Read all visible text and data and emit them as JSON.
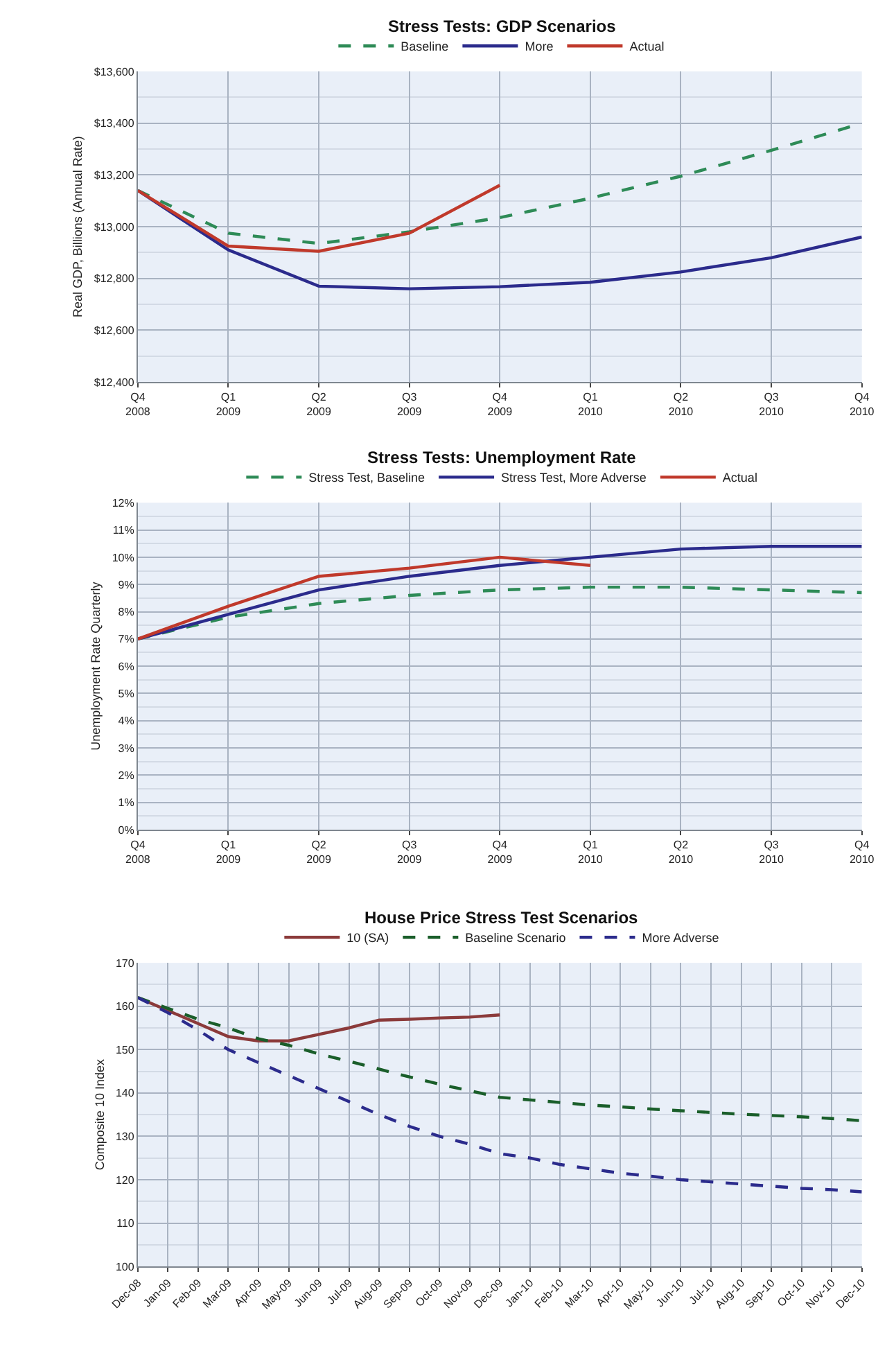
{
  "chart_data": [
    {
      "type": "line",
      "title": "Stress Tests: GDP Scenarios",
      "ylabel": "Real GDP, Billions (Annual Rate)",
      "categories": [
        "Q4\n2008",
        "Q1\n2009",
        "Q2\n2009",
        "Q3\n2009",
        "Q4\n2009",
        "Q1\n2010",
        "Q2\n2010",
        "Q3\n2010",
        "Q4\n2010"
      ],
      "series": [
        {
          "name": "Baseline",
          "color": "#2e8b57",
          "line_style": "dashed",
          "values": [
            13140,
            12975,
            12935,
            12980,
            13035,
            13110,
            13195,
            13295,
            13400
          ]
        },
        {
          "name": "More",
          "color": "#2b2b8c",
          "line_style": "solid",
          "values": [
            13140,
            12910,
            12770,
            12760,
            12768,
            12785,
            12825,
            12880,
            12960
          ]
        },
        {
          "name": "Actual",
          "color": "#c0392b",
          "line_style": "solid",
          "values": [
            13140,
            12925,
            12905,
            12975,
            13160,
            null,
            null,
            null,
            null
          ]
        }
      ],
      "ylim": [
        12400,
        13600
      ],
      "yticks": [
        {
          "value": 12400,
          "label": "$12,400"
        },
        {
          "value": 12600,
          "label": "$12,600"
        },
        {
          "value": 12800,
          "label": "$12,800"
        },
        {
          "value": 13000,
          "label": "$13,000"
        },
        {
          "value": 13200,
          "label": "$13,200"
        },
        {
          "value": 13400,
          "label": "$13,400"
        },
        {
          "value": 13600,
          "label": "$13,600"
        }
      ],
      "grid": true,
      "legend": "top",
      "marker": "none"
    },
    {
      "type": "line",
      "title": "Stress Tests: Unemployment Rate",
      "ylabel": "Unemployment Rate Quarterly",
      "categories": [
        "Q4\n2008",
        "Q1\n2009",
        "Q2\n2009",
        "Q3\n2009",
        "Q4\n2009",
        "Q1\n2010",
        "Q2\n2010",
        "Q3\n2010",
        "Q4\n2010"
      ],
      "series": [
        {
          "name": "Stress Test, Baseline",
          "color": "#2e8b57",
          "line_style": "dashed",
          "values": [
            7.0,
            7.8,
            8.3,
            8.6,
            8.8,
            8.9,
            8.9,
            8.8,
            8.7
          ]
        },
        {
          "name": "Stress Test, More Adverse",
          "color": "#2b2b8c",
          "line_style": "solid",
          "values": [
            7.0,
            7.9,
            8.8,
            9.3,
            9.7,
            10.0,
            10.3,
            10.4,
            10.4
          ]
        },
        {
          "name": "Actual",
          "color": "#c0392b",
          "line_style": "solid",
          "values": [
            7.0,
            8.2,
            9.3,
            9.6,
            10.0,
            9.7,
            null,
            null,
            null
          ]
        }
      ],
      "ylim": [
        0,
        12
      ],
      "yticks": [
        {
          "value": 0,
          "label": "0%"
        },
        {
          "value": 1,
          "label": "1%"
        },
        {
          "value": 2,
          "label": "2%"
        },
        {
          "value": 3,
          "label": "3%"
        },
        {
          "value": 4,
          "label": "4%"
        },
        {
          "value": 5,
          "label": "5%"
        },
        {
          "value": 6,
          "label": "6%"
        },
        {
          "value": 7,
          "label": "7%"
        },
        {
          "value": 8,
          "label": "8%"
        },
        {
          "value": 9,
          "label": "9%"
        },
        {
          "value": 10,
          "label": "10%"
        },
        {
          "value": 11,
          "label": "11%"
        },
        {
          "value": 12,
          "label": "12%"
        }
      ],
      "grid": true,
      "legend": "top",
      "marker": "none"
    },
    {
      "type": "line",
      "title": "House Price Stress Test Scenarios",
      "ylabel": "Composite 10 Index",
      "categories": [
        "Dec-08",
        "Jan-09",
        "Feb-09",
        "Mar-09",
        "Apr-09",
        "May-09",
        "Jun-09",
        "Jul-09",
        "Aug-09",
        "Sep-09",
        "Oct-09",
        "Nov-09",
        "Dec-09",
        "Jan-10",
        "Feb-10",
        "Mar-10",
        "Apr-10",
        "May-10",
        "Jun-10",
        "Jul-10",
        "Aug-10",
        "Sep-10",
        "Oct-10",
        "Nov-10",
        "Dec-10"
      ],
      "series": [
        {
          "name": "10 (SA)",
          "color": "#8b3a3a",
          "line_style": "solid",
          "values": [
            162,
            159,
            156,
            153,
            152,
            152,
            153.5,
            155,
            156.8,
            157,
            157.3,
            157.5,
            158,
            null,
            null,
            null,
            null,
            null,
            null,
            null,
            null,
            null,
            null,
            null,
            null
          ]
        },
        {
          "name": "Baseline Scenario",
          "color": "#1a5e2a",
          "line_style": "dashed",
          "values": [
            162,
            159.5,
            157,
            155,
            152.5,
            151,
            149,
            147.3,
            145.5,
            143.7,
            142,
            140.5,
            139,
            138.4,
            137.8,
            137.2,
            136.8,
            136.3,
            135.9,
            135.5,
            135.1,
            134.8,
            134.5,
            134.1,
            133.6
          ]
        },
        {
          "name": "More Adverse",
          "color": "#2b2b8c",
          "line_style": "dashed",
          "values": [
            162,
            158.5,
            154.5,
            150,
            147,
            144,
            141,
            138,
            135,
            132.3,
            130,
            128.2,
            126,
            125,
            123.5,
            122.5,
            121.5,
            120.8,
            120,
            119.5,
            119,
            118.5,
            118,
            117.7,
            117.2
          ]
        }
      ],
      "ylim": [
        100,
        170
      ],
      "yticks": [
        100,
        110,
        120,
        130,
        140,
        150,
        160,
        170
      ],
      "grid": true,
      "legend": "top",
      "marker": "none"
    }
  ]
}
